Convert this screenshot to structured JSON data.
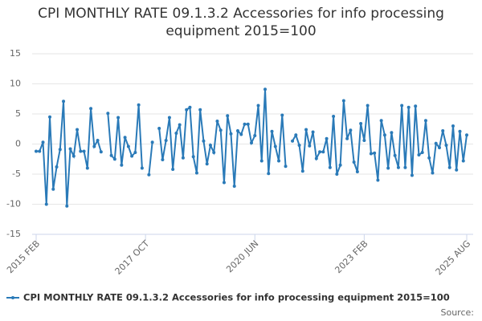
{
  "chart_data": {
    "type": "line",
    "title": "CPI MONTHLY RATE 09.1.3.2 Accessories for info processing equipment 2015=100",
    "source": "Source:",
    "categories": [
      "2015 FEB",
      null,
      null,
      null,
      null,
      null,
      null,
      null,
      null,
      null,
      null,
      null,
      null,
      null,
      null,
      null,
      null,
      null,
      null,
      null,
      null,
      null,
      null,
      null,
      null,
      null,
      null,
      null,
      null,
      null,
      null,
      null,
      "2017 OCT",
      null,
      null,
      null,
      null,
      null,
      null,
      null,
      null,
      null,
      null,
      null,
      null,
      null,
      null,
      null,
      null,
      null,
      null,
      null,
      null,
      null,
      null,
      null,
      null,
      null,
      null,
      null,
      null,
      null,
      null,
      null,
      "2020 JUN",
      null,
      null,
      null,
      null,
      null,
      null,
      null,
      null,
      null,
      null,
      null,
      null,
      null,
      null,
      null,
      null,
      null,
      null,
      null,
      null,
      null,
      null,
      null,
      null,
      null,
      null,
      null,
      null,
      null,
      null,
      null,
      "2023 FEB",
      null,
      null,
      null,
      null,
      null,
      null,
      null,
      null,
      null,
      null,
      null,
      null,
      null,
      null,
      null,
      null,
      null,
      null,
      null,
      null,
      null,
      null,
      null,
      null,
      null,
      null,
      null,
      null,
      null,
      "2025 AUG"
    ],
    "series": [
      {
        "name": "CPI MONTHLY RATE 09.1.3.2 Accessories for info processing equipment 2015=100",
        "color": "#2a7ab8",
        "values": [
          -1.2,
          -1.2,
          0.3,
          -10,
          4.5,
          -7.5,
          -3.8,
          -0.9,
          7.1,
          -10.3,
          -0.8,
          -2,
          2.4,
          -1.2,
          -1.2,
          -4,
          5.9,
          -0.4,
          0.6,
          -1.3,
          null,
          5.1,
          -1.9,
          -2.5,
          4.4,
          -3.5,
          1.1,
          -0.4,
          -2,
          -1.4,
          6.5,
          -4,
          null,
          -5.1,
          0.3,
          null,
          2.6,
          -2.6,
          0.6,
          4.4,
          -4.2,
          1.8,
          3.2,
          -2.3,
          5.7,
          6.1,
          -2.1,
          -4.8,
          5.7,
          0.5,
          -3.3,
          -0.2,
          -1.4,
          3.8,
          2.3,
          -6.4,
          4.7,
          1.7,
          -7,
          2.2,
          1.6,
          3.3,
          3.3,
          0.2,
          1.4,
          6.4,
          -2.8,
          9.1,
          -4.9,
          2.1,
          -0.4,
          -2.8,
          4.8,
          -3.7,
          null,
          0.5,
          1.5,
          -0.2,
          -4.5,
          2.4,
          -0.3,
          2,
          -2.4,
          -1.3,
          -1.3,
          0.9,
          -3.9,
          4.6,
          -5,
          -3.5,
          7.2,
          0.9,
          2.3,
          -3,
          -4.6,
          3.4,
          0.6,
          6.4,
          -1.6,
          -1.5,
          -6,
          3.9,
          1.5,
          -4,
          1.9,
          -1.9,
          -3.9,
          6.4,
          -3.9,
          6.1,
          -5.2,
          6.3,
          -1.8,
          -1.4,
          3.9,
          -2.3,
          -4.8,
          0.1,
          -0.6,
          2.2,
          -0.2,
          -3.9,
          3,
          -4.3,
          2.1,
          -2.8,
          1.5
        ]
      }
    ],
    "ylim": [
      -15,
      15
    ],
    "yticks": [
      -15,
      -10,
      -5,
      0,
      5,
      10,
      15
    ],
    "grid": true,
    "legend": "bottom"
  }
}
